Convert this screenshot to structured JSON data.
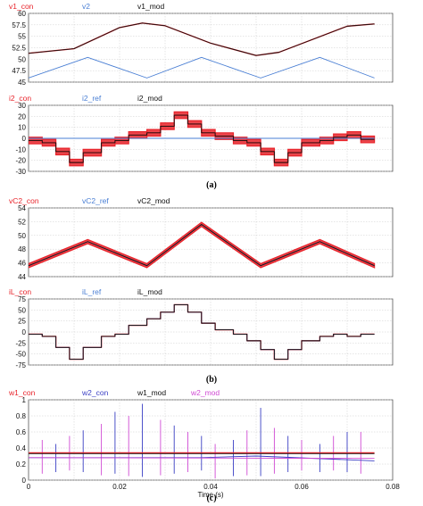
{
  "chart_data": [
    {
      "type": "line",
      "id": "p1",
      "legend": [
        "v1_con",
        "v2",
        "v1_mod"
      ],
      "ylim": [
        45,
        60
      ],
      "yticks": [
        45,
        47.5,
        50,
        52.5,
        55,
        57.5,
        60
      ],
      "xlim": [
        0,
        0.08
      ],
      "grid": true,
      "series": [
        {
          "name": "v1_con",
          "color": "#e8242b",
          "x": [
            0,
            0.01,
            0.02,
            0.025,
            0.03,
            0.04,
            0.05,
            0.055,
            0.06,
            0.07,
            0.076
          ],
          "y": [
            51.3,
            52.3,
            56.9,
            57.9,
            57.3,
            53.5,
            50.8,
            51.5,
            53.4,
            57.2,
            57.7
          ]
        },
        {
          "name": "v2",
          "color": "#4a7fd4",
          "x": [
            0,
            0.013,
            0.026,
            0.038,
            0.051,
            0.064,
            0.076
          ],
          "y": [
            45.9,
            50.4,
            45.9,
            50.4,
            45.9,
            50.4,
            45.9
          ]
        },
        {
          "name": "v1_mod",
          "color": "#111111",
          "x": [
            0,
            0.01,
            0.02,
            0.025,
            0.03,
            0.04,
            0.05,
            0.055,
            0.06,
            0.07,
            0.076
          ],
          "y": [
            51.3,
            52.3,
            56.9,
            57.9,
            57.3,
            53.5,
            50.8,
            51.5,
            53.4,
            57.2,
            57.7
          ]
        }
      ]
    },
    {
      "type": "line",
      "id": "p2",
      "legend": [
        "i2_con",
        "i2_ref",
        "i2_mod"
      ],
      "ylim": [
        -30,
        30
      ],
      "yticks": [
        -30,
        -20,
        -10,
        0,
        10,
        20,
        30
      ],
      "xlim": [
        0,
        0.08
      ],
      "grid": true,
      "series": [
        {
          "name": "i2_con",
          "color": "#e8242b",
          "x": [
            0,
            0.003,
            0.003,
            0.006,
            0.006,
            0.009,
            0.009,
            0.012,
            0.012,
            0.016,
            0.016,
            0.019,
            0.019,
            0.022,
            0.022,
            0.026,
            0.026,
            0.029,
            0.029,
            0.032,
            0.032,
            0.035,
            0.035,
            0.038,
            0.038,
            0.041,
            0.041,
            0.045,
            0.045,
            0.048,
            0.048,
            0.051,
            0.051,
            0.054,
            0.054,
            0.057,
            0.057,
            0.06,
            0.06,
            0.064,
            0.064,
            0.067,
            0.067,
            0.07,
            0.07,
            0.073,
            0.073,
            0.076
          ],
          "y": [
            -2,
            -2,
            -4,
            -4,
            -12,
            -12,
            -22,
            -22,
            -13,
            -13,
            -4,
            -4,
            -2,
            -2,
            3,
            3,
            5,
            5,
            11,
            11,
            21,
            21,
            13,
            13,
            5,
            5,
            2,
            2,
            -2,
            -2,
            -4,
            -4,
            -12,
            -12,
            -22,
            -22,
            -13,
            -13,
            -4,
            -4,
            -2,
            -2,
            1,
            1,
            3,
            3,
            -1,
            -1
          ],
          "band": 6
        },
        {
          "name": "i2_ref",
          "color": "#4a7fd4",
          "x": [
            0,
            0.076
          ],
          "y": [
            0,
            0
          ]
        },
        {
          "name": "i2_mod",
          "color": "#111111",
          "x": [
            0,
            0.003,
            0.003,
            0.006,
            0.006,
            0.009,
            0.009,
            0.012,
            0.012,
            0.016,
            0.016,
            0.019,
            0.019,
            0.022,
            0.022,
            0.026,
            0.026,
            0.029,
            0.029,
            0.032,
            0.032,
            0.035,
            0.035,
            0.038,
            0.038,
            0.041,
            0.041,
            0.045,
            0.045,
            0.048,
            0.048,
            0.051,
            0.051,
            0.054,
            0.054,
            0.057,
            0.057,
            0.06,
            0.06,
            0.064,
            0.064,
            0.067,
            0.067,
            0.07,
            0.07,
            0.073,
            0.073,
            0.076
          ],
          "y": [
            -2,
            -2,
            -4,
            -4,
            -12,
            -12,
            -22,
            -22,
            -13,
            -13,
            -4,
            -4,
            -2,
            -2,
            3,
            3,
            5,
            5,
            11,
            11,
            21,
            21,
            13,
            13,
            5,
            5,
            2,
            2,
            -2,
            -2,
            -4,
            -4,
            -12,
            -12,
            -22,
            -22,
            -13,
            -13,
            -4,
            -4,
            -2,
            -2,
            1,
            1,
            3,
            3,
            -1,
            -1
          ]
        }
      ]
    },
    {
      "type": "line",
      "id": "p3",
      "legend": [
        "vC2_con",
        "vC2_ref",
        "vC2_mod"
      ],
      "ylim": [
        44,
        54
      ],
      "yticks": [
        44,
        46,
        48,
        50,
        52,
        54
      ],
      "xlim": [
        0,
        0.08
      ],
      "grid": true,
      "series": [
        {
          "name": "vC2_con",
          "color": "#e8242b",
          "x": [
            0,
            0.013,
            0.026,
            0.038,
            0.051,
            0.064,
            0.076
          ],
          "y": [
            45.6,
            49.1,
            45.6,
            51.6,
            45.6,
            49.1,
            45.6
          ],
          "band": 0.6
        },
        {
          "name": "vC2_ref",
          "color": "#4a7fd4",
          "x": [
            0,
            0.013,
            0.026,
            0.038,
            0.051,
            0.064,
            0.076
          ],
          "y": [
            45.6,
            49.1,
            45.6,
            51.6,
            45.6,
            49.1,
            45.6
          ]
        },
        {
          "name": "vC2_mod",
          "color": "#111111",
          "x": [
            0,
            0.013,
            0.026,
            0.038,
            0.051,
            0.064,
            0.076
          ],
          "y": [
            45.6,
            49.1,
            45.6,
            51.6,
            45.6,
            49.1,
            45.6
          ]
        }
      ]
    },
    {
      "type": "line",
      "id": "p4",
      "legend": [
        "iL_con",
        "iL_ref",
        "iL_mod"
      ],
      "ylim": [
        -75,
        75
      ],
      "yticks": [
        -75,
        -50,
        -25,
        0,
        25,
        50,
        75
      ],
      "xlim": [
        0,
        0.08
      ],
      "grid": true,
      "series": [
        {
          "name": "iL_con",
          "color": "#e8242b",
          "x": [
            0,
            0.003,
            0.003,
            0.006,
            0.006,
            0.009,
            0.009,
            0.012,
            0.012,
            0.016,
            0.016,
            0.019,
            0.019,
            0.022,
            0.022,
            0.026,
            0.026,
            0.029,
            0.029,
            0.032,
            0.032,
            0.035,
            0.035,
            0.038,
            0.038,
            0.041,
            0.041,
            0.045,
            0.045,
            0.048,
            0.048,
            0.051,
            0.051,
            0.054,
            0.054,
            0.057,
            0.057,
            0.06,
            0.06,
            0.064,
            0.064,
            0.067,
            0.067,
            0.07,
            0.07,
            0.073,
            0.073,
            0.076
          ],
          "y": [
            -5,
            -5,
            -10,
            -10,
            -35,
            -35,
            -62,
            -62,
            -35,
            -35,
            -10,
            -10,
            -5,
            -5,
            15,
            15,
            30,
            30,
            45,
            45,
            62,
            62,
            45,
            45,
            20,
            20,
            5,
            5,
            -5,
            -5,
            -20,
            -20,
            -40,
            -40,
            -62,
            -62,
            -40,
            -40,
            -20,
            -20,
            -10,
            -10,
            -5,
            -5,
            -10,
            -10,
            -5,
            -5
          ]
        },
        {
          "name": "iL_ref",
          "color": "#4a7fd4",
          "x": [
            0,
            0.003,
            0.003,
            0.006,
            0.006,
            0.009,
            0.009,
            0.012,
            0.012,
            0.016,
            0.016,
            0.019,
            0.019,
            0.022,
            0.022,
            0.026,
            0.026,
            0.029,
            0.029,
            0.032,
            0.032,
            0.035,
            0.035,
            0.038,
            0.038,
            0.041,
            0.041,
            0.045,
            0.045,
            0.048,
            0.048,
            0.051,
            0.051,
            0.054,
            0.054,
            0.057,
            0.057,
            0.06,
            0.06,
            0.064,
            0.064,
            0.067,
            0.067,
            0.07,
            0.07,
            0.073,
            0.073,
            0.076
          ],
          "y": [
            -5,
            -5,
            -10,
            -10,
            -35,
            -35,
            -62,
            -62,
            -35,
            -35,
            -10,
            -10,
            -5,
            -5,
            15,
            15,
            30,
            30,
            45,
            45,
            62,
            62,
            45,
            45,
            20,
            20,
            5,
            5,
            -5,
            -5,
            -20,
            -20,
            -40,
            -40,
            -62,
            -62,
            -40,
            -40,
            -20,
            -20,
            -10,
            -10,
            -5,
            -5,
            -10,
            -10,
            -5,
            -5
          ]
        },
        {
          "name": "iL_mod",
          "color": "#111111",
          "x": [
            0,
            0.003,
            0.003,
            0.006,
            0.006,
            0.009,
            0.009,
            0.012,
            0.012,
            0.016,
            0.016,
            0.019,
            0.019,
            0.022,
            0.022,
            0.026,
            0.026,
            0.029,
            0.029,
            0.032,
            0.032,
            0.035,
            0.035,
            0.038,
            0.038,
            0.041,
            0.041,
            0.045,
            0.045,
            0.048,
            0.048,
            0.051,
            0.051,
            0.054,
            0.054,
            0.057,
            0.057,
            0.06,
            0.06,
            0.064,
            0.064,
            0.067,
            0.067,
            0.07,
            0.07,
            0.073,
            0.073,
            0.076
          ],
          "y": [
            -5,
            -5,
            -10,
            -10,
            -35,
            -35,
            -62,
            -62,
            -35,
            -35,
            -10,
            -10,
            -5,
            -5,
            15,
            15,
            30,
            30,
            45,
            45,
            62,
            62,
            45,
            45,
            20,
            20,
            5,
            5,
            -5,
            -5,
            -20,
            -20,
            -40,
            -40,
            -62,
            -62,
            -40,
            -40,
            -20,
            -20,
            -10,
            -10,
            -5,
            -5,
            -10,
            -10,
            -5,
            -5
          ]
        }
      ]
    },
    {
      "type": "line",
      "id": "p5",
      "legend": [
        "w1_con",
        "w2_con",
        "w1_mod",
        "w2_mod"
      ],
      "ylim": [
        0,
        1
      ],
      "yticks": [
        0,
        0.2,
        0.4,
        0.6,
        0.8,
        1
      ],
      "xlim": [
        0,
        0.08
      ],
      "xticks": [
        0,
        0.02,
        0.04,
        0.06,
        0.08
      ],
      "xlabel": "Time (s)",
      "grid": true,
      "series": [
        {
          "name": "w1_con",
          "color": "#e8242b",
          "x": [
            0,
            0.076
          ],
          "y": [
            0.34,
            0.34
          ]
        },
        {
          "name": "w2_con",
          "color": "#3a3fc4",
          "x": [
            0,
            0.038,
            0.05,
            0.076
          ],
          "y": [
            0.28,
            0.28,
            0.3,
            0.24
          ]
        },
        {
          "name": "w1_mod",
          "color": "#111111",
          "x": [
            0,
            0.076
          ],
          "y": [
            0.33,
            0.33
          ]
        },
        {
          "name": "w2_mod",
          "color": "#d04ad4",
          "x": [
            0,
            0.076
          ],
          "y": [
            0.28,
            0.27
          ]
        }
      ],
      "spikes": {
        "x": [
          0.003,
          0.006,
          0.009,
          0.012,
          0.016,
          0.019,
          0.022,
          0.025,
          0.029,
          0.032,
          0.035,
          0.038,
          0.041,
          0.045,
          0.048,
          0.051,
          0.054,
          0.057,
          0.06,
          0.064,
          0.067,
          0.07,
          0.073
        ],
        "high": [
          0.5,
          0.45,
          0.55,
          0.62,
          0.7,
          0.85,
          0.8,
          0.95,
          0.75,
          0.68,
          0.6,
          0.55,
          0.45,
          0.5,
          0.62,
          0.9,
          0.65,
          0.55,
          0.5,
          0.45,
          0.55,
          0.6,
          0.6
        ],
        "low": [
          0.08,
          0.1,
          0.12,
          0.1,
          0.06,
          0.08,
          0.05,
          0.04,
          0.06,
          0.08,
          0.1,
          0.12,
          0.02,
          0.05,
          0.06,
          0.05,
          0.08,
          0.1,
          0.12,
          0.1,
          0.12,
          0.1,
          0.08
        ]
      }
    }
  ],
  "captions": [
    "(a)",
    "(b)",
    "(c)"
  ]
}
